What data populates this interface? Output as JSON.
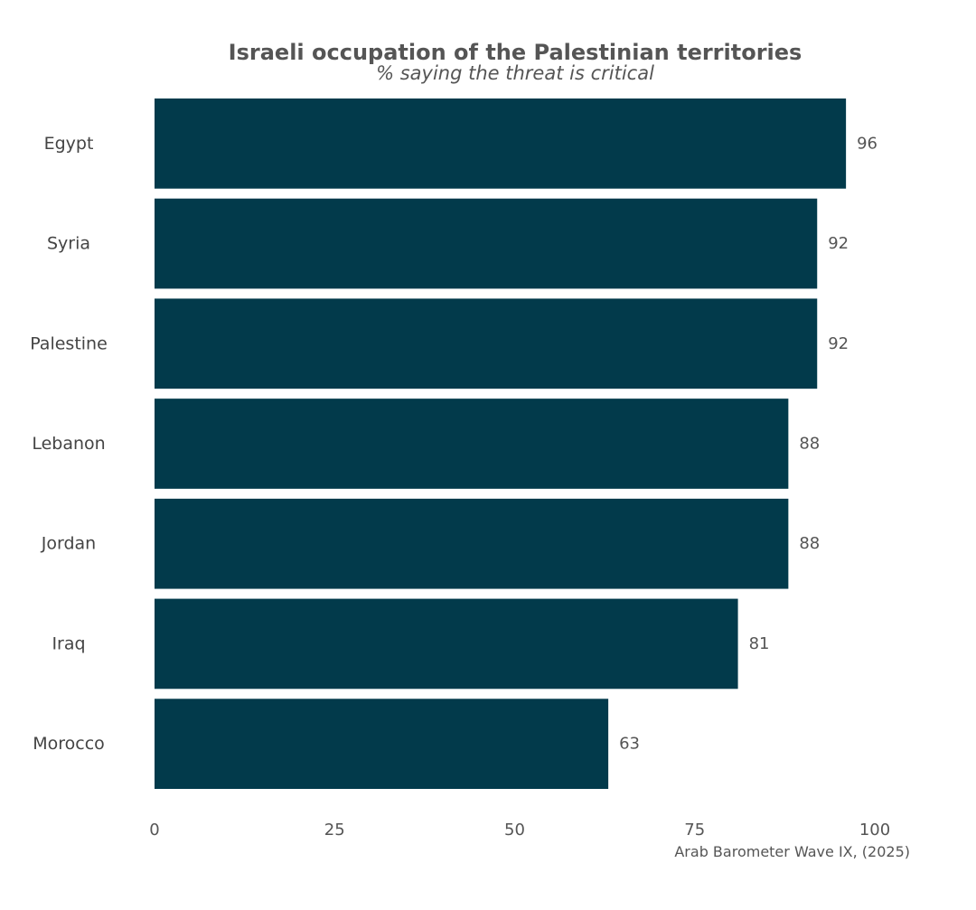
{
  "colors": {
    "bar": "#023a4b",
    "text": "#555555",
    "background": "#ffffff"
  },
  "chart_data": {
    "type": "bar",
    "orientation": "horizontal",
    "title": "Israeli occupation of the Palestinian territories",
    "subtitle": "% saying the threat is critical",
    "caption": "Arab Barometer Wave IX, (2025)",
    "categories": [
      "Egypt",
      "Syria",
      "Palestine",
      "Lebanon",
      "Jordan",
      "Iraq",
      "Morocco"
    ],
    "values": [
      96,
      92,
      92,
      88,
      88,
      81,
      63
    ],
    "xlim": [
      0,
      100
    ],
    "xticks": [
      0,
      25,
      50,
      75,
      100
    ],
    "grid": false,
    "legend": "none"
  }
}
